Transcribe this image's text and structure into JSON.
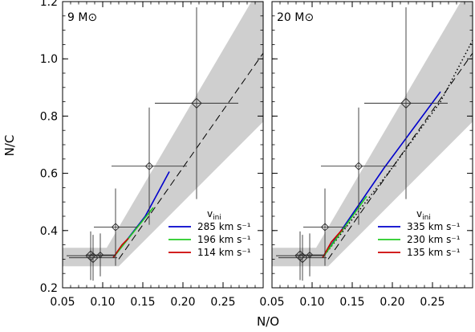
{
  "figure": {
    "ylabel": "N/C",
    "xlabel": "N/O"
  },
  "chart_data": [
    {
      "type": "line",
      "panel_label": "9 M⊙",
      "xlim": [
        0.05,
        0.3
      ],
      "ylim": [
        0.2,
        1.2
      ],
      "x_ticks": [
        0.05,
        0.1,
        0.15,
        0.2,
        0.25
      ],
      "x_tick_labels": [
        "0.05",
        "0.10",
        "0.15",
        "0.20",
        "0.25"
      ],
      "y_ticks": [
        0.2,
        0.4,
        0.6,
        0.8,
        1.0,
        1.2
      ],
      "y_tick_labels": [
        "0.2",
        "0.4",
        "0.6",
        "0.8",
        "1.0",
        "1.2"
      ],
      "legend_title": "v",
      "legend_title_sub": "ini",
      "legend_position": "bottom-right",
      "band": {
        "color": "#cfcfcf",
        "lower": [
          [
            0.05,
            0.275
          ],
          [
            0.12,
            0.275
          ],
          [
            0.3,
            0.78
          ]
        ],
        "upper": [
          [
            0.05,
            0.34
          ],
          [
            0.105,
            0.34
          ],
          [
            0.3,
            1.27
          ]
        ]
      },
      "dashed_line": {
        "color": "#000000",
        "points": [
          [
            0.12,
            0.3
          ],
          [
            0.3,
            1.02
          ]
        ]
      },
      "series": [
        {
          "name": "285 km s⁻¹",
          "color": "#0000cc",
          "points": [
            [
              0.113,
              0.305
            ],
            [
              0.153,
              0.45
            ],
            [
              0.183,
              0.606
            ]
          ]
        },
        {
          "name": "196 km s⁻¹",
          "color": "#22cc22",
          "points": [
            [
              0.113,
              0.305
            ],
            [
              0.14,
              0.4
            ],
            [
              0.163,
              0.48
            ]
          ]
        },
        {
          "name": "114 km s⁻¹",
          "color": "#cc0000",
          "points": [
            [
              0.113,
              0.305
            ],
            [
              0.124,
              0.35
            ],
            [
              0.132,
              0.373
            ]
          ]
        }
      ],
      "data_points": [
        {
          "x": 0.085,
          "y": 0.312,
          "xerr": 0.03,
          "yerr": 0.085,
          "size": "large"
        },
        {
          "x": 0.088,
          "y": 0.305,
          "xerr": 0.03,
          "yerr": 0.08,
          "size": "large"
        },
        {
          "x": 0.097,
          "y": 0.315,
          "xerr": 0.018,
          "yerr": 0.075,
          "size": "small"
        },
        {
          "x": 0.116,
          "y": 0.412,
          "xerr": 0.027,
          "yerr": 0.135,
          "size": "medium"
        },
        {
          "x": 0.158,
          "y": 0.625,
          "xerr": 0.047,
          "yerr": 0.205,
          "size": "medium"
        },
        {
          "x": 0.217,
          "y": 0.845,
          "xerr": 0.052,
          "yerr": 0.335,
          "size": "large"
        }
      ]
    },
    {
      "type": "line",
      "panel_label": "20 M⊙",
      "xlim": [
        0.05,
        0.3
      ],
      "ylim": [
        0.2,
        1.2
      ],
      "x_ticks": [
        0.05,
        0.1,
        0.15,
        0.2,
        0.25
      ],
      "x_tick_labels": [
        "0.05",
        "0.10",
        "0.15",
        "0.20",
        "0.25"
      ],
      "y_ticks": [
        0.2,
        0.4,
        0.6,
        0.8,
        1.0,
        1.2
      ],
      "y_tick_labels": [],
      "legend_title": "v",
      "legend_title_sub": "ini",
      "legend_position": "bottom-right",
      "band": {
        "color": "#cfcfcf",
        "lower": [
          [
            0.05,
            0.275
          ],
          [
            0.12,
            0.275
          ],
          [
            0.3,
            0.78
          ]
        ],
        "upper": [
          [
            0.05,
            0.34
          ],
          [
            0.105,
            0.34
          ],
          [
            0.3,
            1.27
          ]
        ]
      },
      "dashed_line": {
        "color": "#000000",
        "points": [
          [
            0.12,
            0.3
          ],
          [
            0.3,
            1.02
          ]
        ]
      },
      "dotted_line": {
        "color": "#000000",
        "points": [
          [
            0.113,
            0.305
          ],
          [
            0.2,
            0.62
          ],
          [
            0.26,
            0.85
          ],
          [
            0.3,
            1.065
          ]
        ]
      },
      "series": [
        {
          "name": "335 km s⁻¹",
          "color": "#0000cc",
          "points": [
            [
              0.113,
              0.305
            ],
            [
              0.19,
              0.62
            ],
            [
              0.26,
              0.885
            ]
          ]
        },
        {
          "name": "230 km s⁻¹",
          "color": "#22cc22",
          "points": [
            [
              0.113,
              0.305
            ],
            [
              0.14,
              0.41
            ],
            [
              0.168,
              0.52
            ]
          ]
        },
        {
          "name": "135 km s⁻¹",
          "color": "#cc0000",
          "points": [
            [
              0.113,
              0.305
            ],
            [
              0.124,
              0.36
            ],
            [
              0.138,
              0.405
            ]
          ]
        }
      ],
      "data_points": [
        {
          "x": 0.085,
          "y": 0.312,
          "xerr": 0.03,
          "yerr": 0.085,
          "size": "large"
        },
        {
          "x": 0.088,
          "y": 0.305,
          "xerr": 0.03,
          "yerr": 0.08,
          "size": "large"
        },
        {
          "x": 0.097,
          "y": 0.315,
          "xerr": 0.018,
          "yerr": 0.075,
          "size": "small"
        },
        {
          "x": 0.116,
          "y": 0.412,
          "xerr": 0.027,
          "yerr": 0.135,
          "size": "medium"
        },
        {
          "x": 0.158,
          "y": 0.625,
          "xerr": 0.047,
          "yerr": 0.205,
          "size": "medium"
        },
        {
          "x": 0.217,
          "y": 0.845,
          "xerr": 0.052,
          "yerr": 0.335,
          "size": "large"
        }
      ]
    }
  ]
}
